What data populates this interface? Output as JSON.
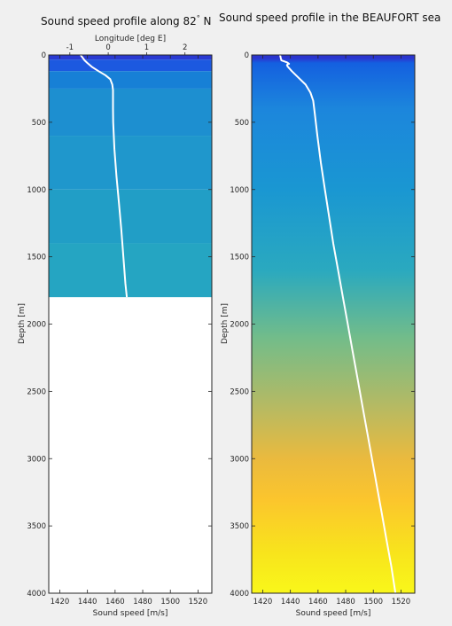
{
  "chart_data": [
    {
      "type": "heatmap",
      "title": "Sound speed profile along 82",
      "title_superscript": "°",
      "title_suffix": " N",
      "xlabel": "Sound speed [m/s]",
      "ylabel": "Depth [m]",
      "x2label": "Longitude [deg E]",
      "xlim": [
        1412,
        1530
      ],
      "ylim": [
        0,
        4000
      ],
      "x2lim": [
        -1.55,
        2.7
      ],
      "y_reversed": true,
      "xticks": [
        1420,
        1440,
        1460,
        1480,
        1500,
        1520
      ],
      "yticks": [
        0,
        500,
        1000,
        1500,
        2000,
        2500,
        3000,
        3500,
        4000
      ],
      "x2ticks": [
        -1,
        0,
        1,
        2
      ],
      "colorscale": [
        "#2b3fd1",
        "#1469e4",
        "#1a8fda",
        "#2aa9bf",
        "#70bd8c",
        "#c1bd5c",
        "#f6c23a",
        "#f9f218"
      ],
      "field_depth_max": 1800,
      "field_rows": [
        {
          "depth_from": 0,
          "depth_to": 35,
          "color": "#2a3ad2"
        },
        {
          "depth_from": 35,
          "depth_to": 120,
          "color": "#1c59e0"
        },
        {
          "depth_from": 120,
          "depth_to": 250,
          "color": "#1780d6"
        },
        {
          "depth_from": 250,
          "depth_to": 600,
          "color": "#1d8fd0"
        },
        {
          "depth_from": 600,
          "depth_to": 1000,
          "color": "#1f97cc"
        },
        {
          "depth_from": 1000,
          "depth_to": 1400,
          "color": "#219ec6"
        },
        {
          "depth_from": 1400,
          "depth_to": 1800,
          "color": "#25a5c2"
        }
      ],
      "profile": {
        "depth": [
          0,
          20,
          40,
          60,
          90,
          120,
          150,
          180,
          220,
          260,
          320,
          400,
          500,
          700,
          900,
          1100,
          1300,
          1500,
          1700,
          1800
        ],
        "speed": [
          1435,
          1436.5,
          1438,
          1440,
          1443.5,
          1448,
          1453,
          1456.5,
          1458,
          1458.5,
          1458.5,
          1458.5,
          1458.6,
          1459.5,
          1461,
          1462.8,
          1464.5,
          1466,
          1467.5,
          1468.5
        ]
      }
    },
    {
      "type": "heatmap",
      "title": "Sound speed profile in the BEAUFORT sea",
      "xlabel": "Sound speed [m/s]",
      "ylabel": "Depth [m]",
      "xlim": [
        1412,
        1530
      ],
      "ylim": [
        0,
        4000
      ],
      "y_reversed": true,
      "xticks": [
        1420,
        1440,
        1460,
        1480,
        1500,
        1520
      ],
      "yticks": [
        0,
        500,
        1000,
        1500,
        2000,
        2500,
        3000,
        3500,
        4000
      ],
      "colorscale": [
        "#2b3fd1",
        "#1469e4",
        "#1a8fda",
        "#2aa9bf",
        "#70bd8c",
        "#c1bd5c",
        "#f6c23a",
        "#f9f218"
      ],
      "field_depth_max": 4000,
      "field_stops": [
        {
          "depth": 0,
          "color": "#2a35cf"
        },
        {
          "depth": 25,
          "color": "#2a35cf"
        },
        {
          "depth": 60,
          "color": "#1460e0"
        },
        {
          "depth": 400,
          "color": "#1c86dc"
        },
        {
          "depth": 1000,
          "color": "#1a97d2"
        },
        {
          "depth": 1600,
          "color": "#2aa9bf"
        },
        {
          "depth": 2100,
          "color": "#72bc8a"
        },
        {
          "depth": 2600,
          "color": "#b4ba64"
        },
        {
          "depth": 3000,
          "color": "#eaba3e"
        },
        {
          "depth": 3300,
          "color": "#fbc52d"
        },
        {
          "depth": 3700,
          "color": "#f8e41c"
        },
        {
          "depth": 4000,
          "color": "#f9f71a"
        }
      ],
      "profile": {
        "depth": [
          0,
          20,
          40,
          55,
          65,
          70,
          75,
          85,
          120,
          170,
          220,
          280,
          340,
          420,
          600,
          800,
          1000,
          1200,
          1400,
          1600,
          1800,
          2000,
          2200,
          2400,
          2600,
          2800,
          3000,
          3200,
          3400,
          3600,
          3800,
          4000
        ],
        "speed": [
          1432.5,
          1433,
          1433.5,
          1437.5,
          1439,
          1438,
          1437.5,
          1438,
          1441,
          1446,
          1451,
          1454.5,
          1456.5,
          1457.5,
          1459.5,
          1462,
          1465,
          1468,
          1471,
          1474.5,
          1478,
          1481.5,
          1485,
          1488.5,
          1492,
          1495.5,
          1499,
          1502.5,
          1506,
          1509.5,
          1513,
          1516
        ]
      }
    }
  ]
}
